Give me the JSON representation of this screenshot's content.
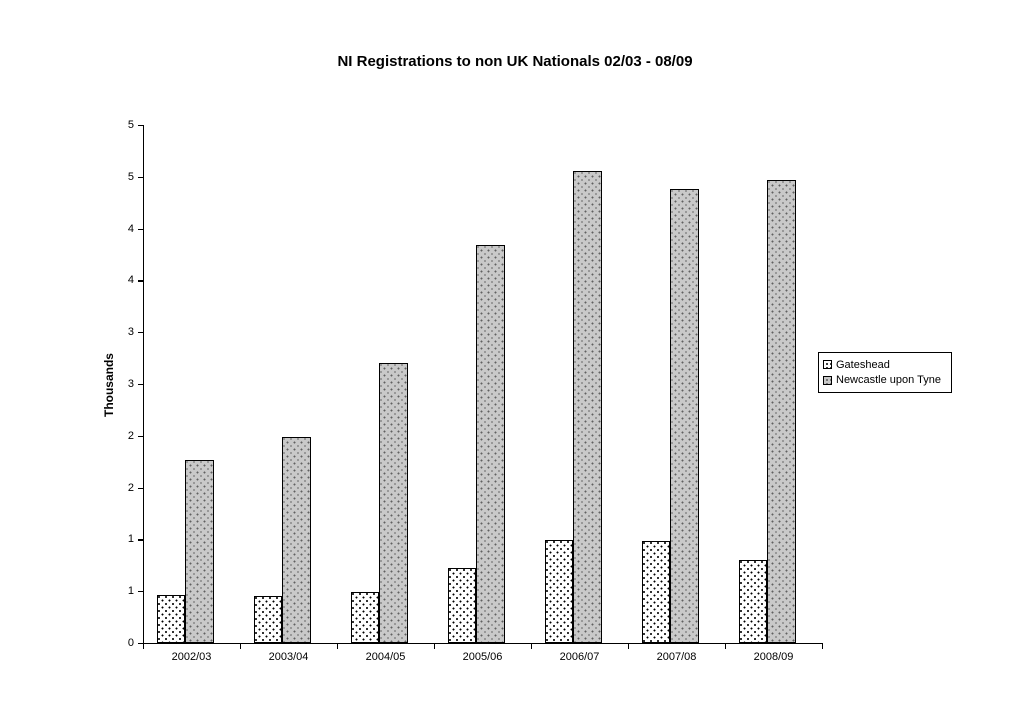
{
  "chart_data": {
    "type": "bar",
    "title": "NI Registrations to non UK Nationals 02/03 - 08/09",
    "ylabel": "Thousands",
    "xlabel": "",
    "categories": [
      "2002/03",
      "2003/04",
      "2004/05",
      "2005/06",
      "2006/07",
      "2007/08",
      "2008/09"
    ],
    "series": [
      {
        "name": "Gateshead",
        "values": [
          0.46,
          0.45,
          0.49,
          0.72,
          0.99,
          0.98,
          0.8
        ]
      },
      {
        "name": "Newcastle upon Tyne",
        "values": [
          1.77,
          1.99,
          2.7,
          3.84,
          4.56,
          4.38,
          4.47
        ]
      }
    ],
    "ylim": [
      0,
      5
    ],
    "ytick_step": 0.5,
    "ytick_labels": [
      "0",
      "1",
      "1",
      "2",
      "2",
      "3",
      "3",
      "4",
      "4",
      "5",
      "5"
    ],
    "grid": false,
    "legend_position": "right",
    "colors": {
      "gateshead_fill": "#ffffff",
      "newcastle_fill": "#c9c9c9",
      "axis": "#000000",
      "background": "#ffffff"
    }
  }
}
